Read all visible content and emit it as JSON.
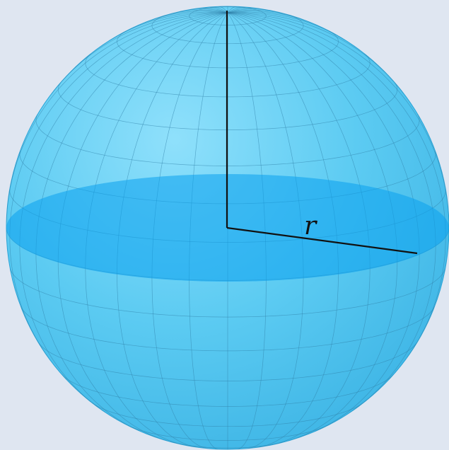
{
  "diagram": {
    "labels": {
      "radius": "r"
    },
    "colors": {
      "background": "#dfe6f1",
      "sphere_fill": "#56c8f0",
      "sphere_edge": "#2aa3d6",
      "equator_disk": "#0aa0ee",
      "grid_line": "#2f7fa8",
      "axis_line": "#111111"
    },
    "grid": {
      "meridians": 36,
      "parallels": 17
    }
  }
}
